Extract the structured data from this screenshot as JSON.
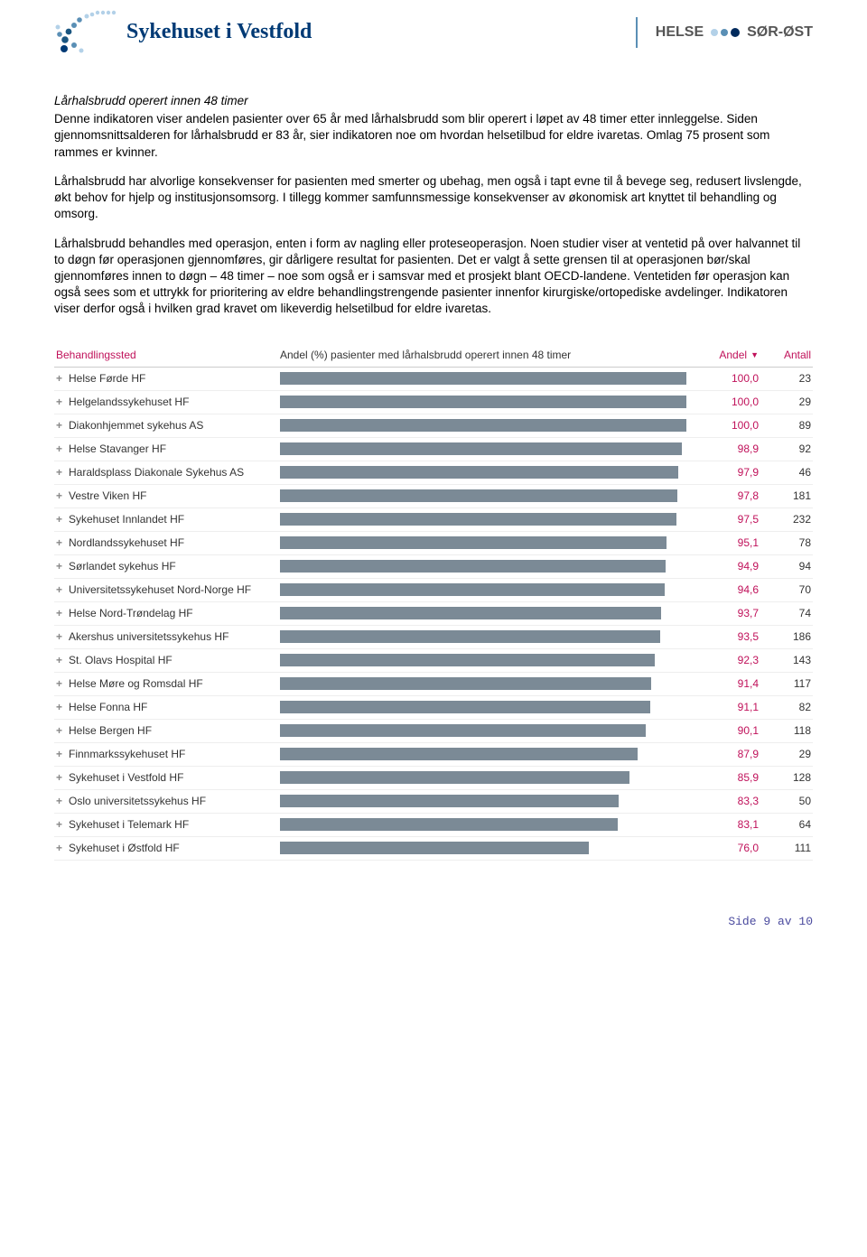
{
  "colors": {
    "brand_primary": "#003a75",
    "accent_magenta": "#c0115a",
    "bar_fill": "#7b8a96",
    "row_border": "#eeeeee",
    "header_border": "#cccccc",
    "footer_text": "#4a4a9e",
    "logo_light": "#b3d1e8",
    "logo_mid": "#5a8fb5",
    "logo_dark": "#1a5580",
    "dot_navy": "#002a5c"
  },
  "header": {
    "brand_left": "Sykehuset i Vestfold",
    "brand_right_1": "HELSE",
    "brand_right_2": "SØR-ØST"
  },
  "body": {
    "title": "Lårhalsbrudd operert innen 48 timer",
    "p1": "Denne indikatoren viser andelen pasienter over 65 år med lårhalsbrudd som blir operert i løpet av 48 timer etter innleggelse. Siden gjennomsnittsalderen for lårhalsbrudd er 83 år, sier indikatoren noe om hvordan helsetilbud for eldre ivaretas. Omlag 75 prosent som rammes er kvinner.",
    "p2": "Lårhalsbrudd har alvorlige konsekvenser for pasienten med smerter og ubehag, men også i tapt evne til å bevege seg, redusert livslengde, økt behov for hjelp og institusjonsomsorg. I tillegg kommer samfunnsmessige konsekvenser av økonomisk art knyttet til behandling og omsorg.",
    "p3": "Lårhalsbrudd behandles med operasjon, enten i form av nagling eller proteseoperasjon. Noen studier viser at ventetid på over halvannet til to døgn før operasjonen gjennomføres, gir dårligere resultat for pasienten. Det er valgt å sette grensen til at operasjonen bør/skal gjennomføres innen to døgn – 48 timer – noe som også er i samsvar med et prosjekt blant OECD-landene. Ventetiden før operasjon kan også sees som et uttrykk for prioritering av eldre behandlingstrengende pasienter innenfor kirurgiske/ortopediske avdelinger. Indikatoren viser derfor også i hvilken grad kravet om likeverdig helsetilbud for eldre ivaretas."
  },
  "table": {
    "header_name": "Behandlingssted",
    "header_bar": "Andel (%) pasienter med lårhalsbrudd operert innen 48 timer",
    "header_andel": "Andel",
    "header_antall": "Antall",
    "bar_max": 100,
    "rows": [
      {
        "name": "Helse Førde HF",
        "andel": "100,0",
        "pct": 100.0,
        "antall": 23
      },
      {
        "name": "Helgelandssykehuset HF",
        "andel": "100,0",
        "pct": 100.0,
        "antall": 29
      },
      {
        "name": "Diakonhjemmet sykehus AS",
        "andel": "100,0",
        "pct": 100.0,
        "antall": 89
      },
      {
        "name": "Helse Stavanger HF",
        "andel": "98,9",
        "pct": 98.9,
        "antall": 92
      },
      {
        "name": "Haraldsplass Diakonale Sykehus AS",
        "andel": "97,9",
        "pct": 97.9,
        "antall": 46
      },
      {
        "name": "Vestre Viken HF",
        "andel": "97,8",
        "pct": 97.8,
        "antall": 181
      },
      {
        "name": "Sykehuset Innlandet HF",
        "andel": "97,5",
        "pct": 97.5,
        "antall": 232
      },
      {
        "name": "Nordlandssykehuset HF",
        "andel": "95,1",
        "pct": 95.1,
        "antall": 78
      },
      {
        "name": "Sørlandet sykehus HF",
        "andel": "94,9",
        "pct": 94.9,
        "antall": 94
      },
      {
        "name": "Universitetssykehuset Nord-Norge HF",
        "andel": "94,6",
        "pct": 94.6,
        "antall": 70
      },
      {
        "name": "Helse Nord-Trøndelag HF",
        "andel": "93,7",
        "pct": 93.7,
        "antall": 74
      },
      {
        "name": "Akershus universitetssykehus HF",
        "andel": "93,5",
        "pct": 93.5,
        "antall": 186
      },
      {
        "name": "St. Olavs Hospital HF",
        "andel": "92,3",
        "pct": 92.3,
        "antall": 143
      },
      {
        "name": "Helse Møre og Romsdal HF",
        "andel": "91,4",
        "pct": 91.4,
        "antall": 117
      },
      {
        "name": "Helse Fonna HF",
        "andel": "91,1",
        "pct": 91.1,
        "antall": 82
      },
      {
        "name": "Helse Bergen HF",
        "andel": "90,1",
        "pct": 90.1,
        "antall": 118
      },
      {
        "name": "Finnmarkssykehuset HF",
        "andel": "87,9",
        "pct": 87.9,
        "antall": 29
      },
      {
        "name": "Sykehuset i Vestfold HF",
        "andel": "85,9",
        "pct": 85.9,
        "antall": 128
      },
      {
        "name": "Oslo universitetssykehus HF",
        "andel": "83,3",
        "pct": 83.3,
        "antall": 50
      },
      {
        "name": "Sykehuset i Telemark HF",
        "andel": "83,1",
        "pct": 83.1,
        "antall": 64
      },
      {
        "name": "Sykehuset i Østfold HF",
        "andel": "76,0",
        "pct": 76.0,
        "antall": 111
      }
    ]
  },
  "footer": {
    "label": "Side",
    "page": "9",
    "sep": "av",
    "total": "10"
  }
}
